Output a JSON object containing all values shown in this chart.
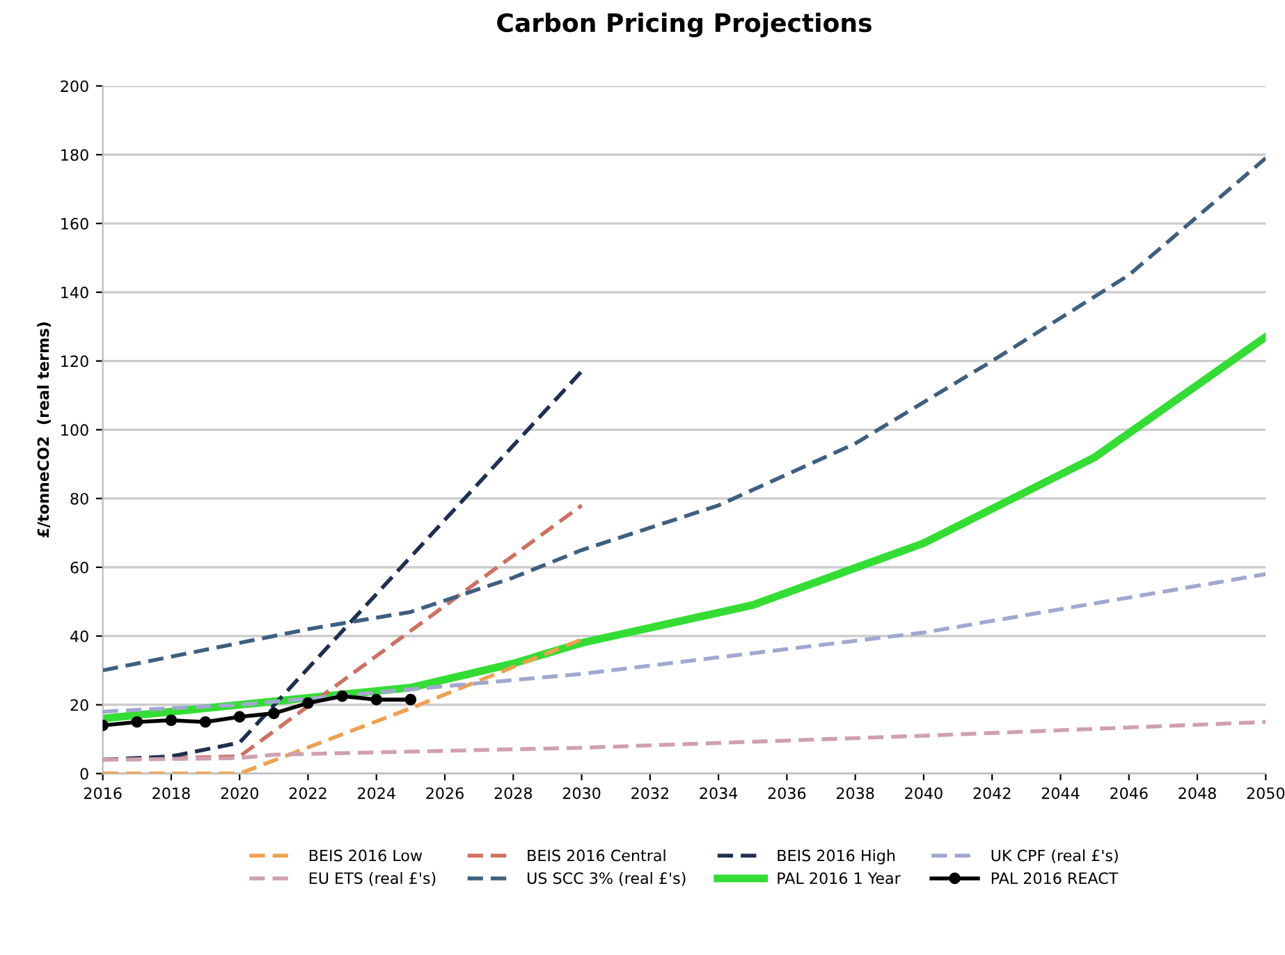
{
  "chart_data": {
    "type": "line",
    "title": "Carbon Pricing Projections",
    "ylabel": "£/tonneCO2  (real terms)",
    "xlim": [
      2016,
      2050
    ],
    "xticks": [
      2016,
      2018,
      2020,
      2022,
      2024,
      2026,
      2028,
      2030,
      2032,
      2034,
      2036,
      2038,
      2040,
      2042,
      2044,
      2046,
      2048,
      2050
    ],
    "ylim": [
      0,
      200
    ],
    "yticks": [
      0,
      20,
      40,
      60,
      80,
      100,
      120,
      140,
      160,
      180,
      200
    ],
    "grid": "y",
    "legend": "bottom",
    "line_style": "dashed",
    "marker": "none",
    "series": [
      {
        "name": "BEIS 2016 Low",
        "color": "#f0a050",
        "x": [
          2016,
          2020,
          2025,
          2030
        ],
        "values": [
          0,
          0,
          19,
          39
        ]
      },
      {
        "name": "BEIS 2016 Central",
        "color": "#d07060",
        "x": [
          2016,
          2020,
          2030
        ],
        "values": [
          4,
          5,
          78
        ]
      },
      {
        "name": "BEIS 2016 High",
        "color": "#1f2f4f",
        "x": [
          2016,
          2018,
          2020,
          2030
        ],
        "values": [
          4,
          5,
          9,
          117
        ]
      },
      {
        "name": "UK CPF (real £'s)",
        "color": "#a0a8d0",
        "x": [
          2016,
          2020,
          2030,
          2040,
          2050
        ],
        "values": [
          18,
          20,
          29,
          41,
          58
        ]
      },
      {
        "name": "EU ETS (real £'s)",
        "color": "#d0a0b0",
        "x": [
          2016,
          2020,
          2021,
          2030,
          2040,
          2050
        ],
        "values": [
          4,
          4.5,
          5.5,
          7.5,
          11,
          15
        ]
      },
      {
        "name": "US SCC 3% (real £'s)",
        "color": "#3f5f7f",
        "x": [
          2016,
          2020,
          2022,
          2025,
          2028,
          2030,
          2034,
          2038,
          2042,
          2046,
          2050
        ],
        "values": [
          30,
          38,
          42,
          47,
          57,
          65,
          78,
          96,
          120,
          145,
          179
        ]
      },
      {
        "name": "PAL 2016 1 Year",
        "color": "#33dd33",
        "line_style": "solid",
        "x": [
          2016,
          2020,
          2025,
          2028,
          2030,
          2035,
          2040,
          2045,
          2050
        ],
        "values": [
          16,
          20,
          25,
          32,
          38,
          49,
          67,
          92,
          127
        ]
      },
      {
        "name": "PAL 2016 REACT",
        "color": "#000000",
        "line_style": "solid",
        "marker": "circle",
        "x": [
          2016,
          2017,
          2018,
          2019,
          2020,
          2021,
          2022,
          2023,
          2024,
          2025
        ],
        "values": [
          14,
          15,
          15.5,
          15,
          16.5,
          17.5,
          20.5,
          22.5,
          21.5,
          21.5
        ]
      }
    ]
  }
}
